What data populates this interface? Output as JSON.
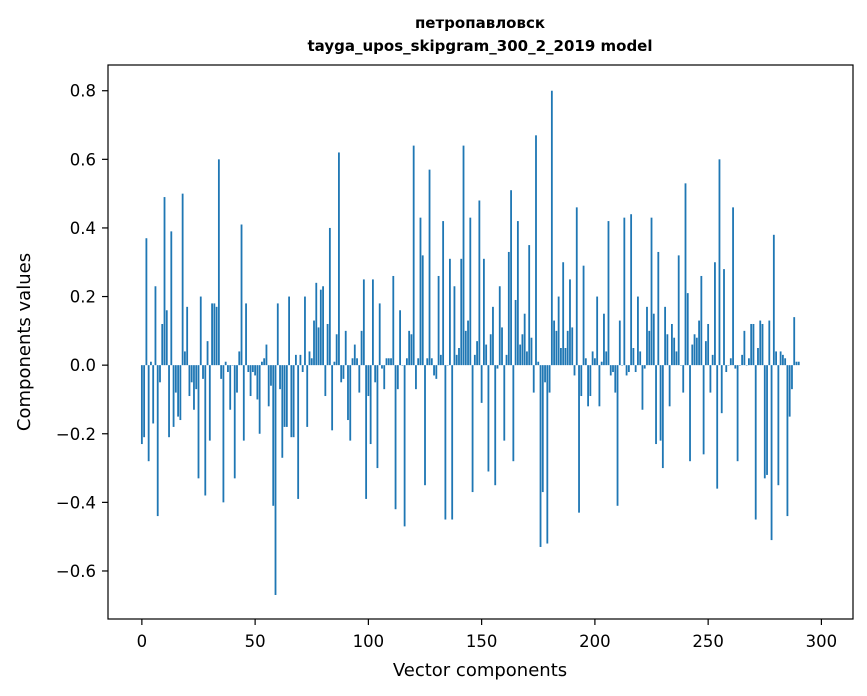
{
  "chart_data": {
    "type": "bar",
    "title_line1": "петропавловск",
    "title_line2": "tayga_upos_skipgram_300_2_2019 model",
    "xlabel": "Vector components",
    "ylabel": "Components values",
    "xlim": [
      -14.95,
      313.95
    ],
    "ylim": [
      -0.74,
      0.875
    ],
    "xticks": [
      0,
      50,
      100,
      150,
      200,
      250,
      300
    ],
    "yticks": [
      -0.6,
      -0.4,
      -0.2,
      0.0,
      0.2,
      0.4,
      0.6,
      0.8
    ],
    "xtick_labels": [
      "0",
      "50",
      "100",
      "150",
      "200",
      "250",
      "300"
    ],
    "ytick_labels": [
      "−0.6",
      "−0.4",
      "−0.2",
      "0.0",
      "0.2",
      "0.4",
      "0.6",
      "0.8"
    ],
    "bar_color": "#1f77b4",
    "x_start": 0,
    "values": [
      -0.23,
      -0.21,
      0.37,
      -0.28,
      0.01,
      -0.17,
      0.23,
      -0.44,
      -0.05,
      0.12,
      0.49,
      0.16,
      -0.21,
      0.39,
      -0.18,
      -0.08,
      -0.15,
      -0.16,
      0.5,
      0.04,
      0.17,
      -0.09,
      -0.05,
      -0.13,
      -0.07,
      -0.33,
      0.2,
      -0.04,
      -0.38,
      0.07,
      -0.22,
      0.18,
      0.18,
      0.17,
      0.6,
      -0.04,
      -0.4,
      0.01,
      -0.02,
      -0.13,
      0.0,
      -0.33,
      -0.08,
      0.04,
      0.41,
      -0.22,
      0.18,
      -0.02,
      -0.09,
      -0.02,
      -0.03,
      -0.1,
      -0.2,
      0.01,
      0.02,
      0.06,
      -0.12,
      -0.06,
      -0.41,
      -0.67,
      0.18,
      -0.07,
      -0.27,
      -0.18,
      -0.18,
      0.2,
      -0.21,
      -0.21,
      0.03,
      -0.39,
      0.03,
      -0.02,
      0.2,
      -0.18,
      0.04,
      0.02,
      0.13,
      0.24,
      0.11,
      0.22,
      0.23,
      -0.09,
      0.12,
      0.4,
      -0.19,
      0.01,
      0.09,
      0.62,
      -0.05,
      -0.04,
      0.1,
      -0.16,
      -0.22,
      0.02,
      0.06,
      0.02,
      -0.08,
      0.1,
      0.25,
      -0.39,
      -0.09,
      -0.23,
      0.25,
      -0.05,
      -0.3,
      0.18,
      -0.01,
      -0.07,
      0.02,
      0.02,
      0.02,
      0.26,
      -0.42,
      -0.07,
      0.16,
      0.0,
      -0.47,
      0.02,
      0.1,
      0.09,
      0.64,
      -0.07,
      0.02,
      0.43,
      0.32,
      -0.35,
      0.02,
      0.57,
      0.02,
      -0.03,
      -0.04,
      0.26,
      0.03,
      0.42,
      -0.45,
      0.0,
      0.31,
      -0.45,
      0.23,
      0.03,
      0.05,
      0.31,
      0.64,
      0.1,
      0.13,
      0.43,
      -0.37,
      0.03,
      0.07,
      0.48,
      -0.11,
      0.31,
      0.06,
      -0.31,
      0.09,
      0.17,
      -0.35,
      -0.01,
      0.23,
      0.11,
      -0.22,
      0.03,
      0.33,
      0.51,
      -0.28,
      0.19,
      0.42,
      0.06,
      0.09,
      0.15,
      0.04,
      0.35,
      0.08,
      -0.08,
      0.67,
      0.01,
      -0.53,
      -0.37,
      -0.05,
      -0.52,
      -0.08,
      0.8,
      0.13,
      0.1,
      0.2,
      0.05,
      0.3,
      0.05,
      0.1,
      0.25,
      0.11,
      -0.03,
      0.46,
      -0.43,
      -0.09,
      0.29,
      0.02,
      -0.12,
      -0.09,
      0.04,
      0.02,
      0.2,
      -0.12,
      0.01,
      0.15,
      0.04,
      0.42,
      -0.03,
      -0.02,
      -0.08,
      -0.41,
      0.13,
      0.0,
      0.43,
      -0.03,
      -0.02,
      0.44,
      0.05,
      -0.02,
      0.2,
      0.04,
      -0.13,
      -0.01,
      0.17,
      0.1,
      0.43,
      0.15,
      -0.23,
      0.33,
      -0.22,
      -0.3,
      0.17,
      0.09,
      -0.12,
      0.12,
      0.08,
      0.04,
      0.32,
      0.0,
      -0.08,
      0.53,
      0.21,
      -0.28,
      0.06,
      0.09,
      0.08,
      0.13,
      0.26,
      -0.26,
      0.07,
      0.12,
      -0.08,
      0.03,
      0.3,
      -0.36,
      0.6,
      -0.14,
      0.28,
      -0.02,
      0.0,
      0.02,
      0.46,
      -0.01,
      -0.28,
      0.0,
      0.03,
      0.1,
      0.0,
      0.02,
      0.12,
      0.12,
      -0.45,
      0.05,
      0.13,
      0.12,
      -0.33,
      -0.32,
      0.13,
      -0.51,
      0.38,
      0.04,
      -0.35,
      0.04,
      0.03,
      0.02,
      -0.44,
      -0.15,
      -0.07,
      0.14,
      0.01,
      0.01
    ]
  }
}
